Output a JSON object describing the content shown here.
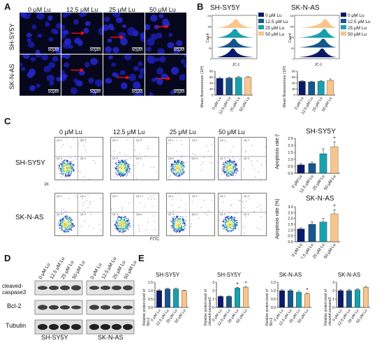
{
  "figure": {
    "panel_labels": [
      "A",
      "B",
      "C",
      "D",
      "E"
    ],
    "treatments": [
      "0 μM Lu",
      "12.5 μM Lu",
      "25 μM Lu",
      "50 μM Lu"
    ],
    "cell_lines": [
      "SH-SY5Y",
      "SK-N-AS"
    ],
    "scale_bar": "50μM",
    "colors": [
      "#0a1a6b",
      "#16568c",
      "#18a0ac",
      "#f7c68c"
    ]
  },
  "panelB": {
    "jc1_label": "JC-1",
    "count_label": "Count",
    "mean_fl_label": "Mean fluorescence (10³)",
    "ylim": [
      0,
      80
    ],
    "yticks": [
      "0",
      "20",
      "40",
      "60",
      "80"
    ],
    "count_ticks": [
      "0",
      "60",
      "120",
      "180",
      "240"
    ]
  },
  "panelC": {
    "x_axis_label": "FITC",
    "y_axis_label": "PI",
    "apop_label": "Apoptosis rate (%)",
    "q_labels": [
      "Q1-1",
      "Q1-2",
      "Q1-3",
      "Q1-4"
    ],
    "shsy_yticks": [
      "0.0",
      "0.5",
      "1.0",
      "1.5",
      "2.0",
      "2.5"
    ],
    "skn_yticks": [
      "0.0",
      "0.5",
      "1.0",
      "1.5",
      "2.0",
      "2.5",
      "3.0"
    ]
  },
  "panelD": {
    "proteins": [
      "cleaved-caspase3",
      "Bcl-2",
      "Tubulin"
    ]
  },
  "panelE": {
    "titles": [
      "SH-SY5Y",
      "SH-SY5Y",
      "SK-N-AS",
      "SK-N-AS"
    ],
    "ylabels": [
      "Relative protein level of Bcl-2",
      "Relative protein level of cleaved-caspase3",
      "Relative protein level of Bcl-2",
      "Relative protein level of cleaved-caspase3"
    ]
  },
  "chart_data": [
    {
      "type": "bar",
      "id": "B-SH-SY5Y",
      "categories": [
        "0 μM Lu",
        "12.5 μM Lu",
        "25 μM Lu",
        "50 μM Lu"
      ],
      "values": [
        56,
        57,
        59,
        60
      ],
      "errors": [
        3,
        3,
        3,
        2
      ],
      "ylabel": "Mean fluorescence (10³)",
      "ylim": [
        0,
        80
      ]
    },
    {
      "type": "bar",
      "id": "B-SK-N-AS",
      "categories": [
        "0 μM Lu",
        "12.5 μM Lu",
        "25 μM Lu",
        "50 μM Lu"
      ],
      "values": [
        46,
        44,
        46,
        49
      ],
      "errors": [
        2,
        2,
        2,
        5
      ],
      "ylabel": "Mean fluorescence (10³)",
      "ylim": [
        0,
        80
      ]
    },
    {
      "type": "bar",
      "id": "C-SH-SY5Y",
      "title": "SH-SY5Y",
      "categories": [
        "0 μM Lu",
        "12.5 μM Lu",
        "25 μM Lu",
        "50 μM Lu"
      ],
      "values": [
        0.6,
        0.7,
        1.4,
        1.9
      ],
      "errors": [
        0.07,
        0.1,
        0.35,
        0.35
      ],
      "sig": [
        false,
        false,
        false,
        true
      ],
      "ylabel": "Apoptosis rate (%)",
      "ylim": [
        0,
        2.5
      ]
    },
    {
      "type": "bar",
      "id": "C-SK-N-AS",
      "title": "SK-N-AS",
      "categories": [
        "0 μM Lu",
        "12.5 μM Lu",
        "25 μM Lu",
        "50 μM Lu"
      ],
      "values": [
        1.1,
        1.5,
        1.7,
        2.4
      ],
      "errors": [
        0.1,
        0.2,
        0.3,
        0.35
      ],
      "sig": [
        false,
        false,
        false,
        true
      ],
      "ylabel": "Apoptosis rate (%)",
      "ylim": [
        0,
        3.0
      ]
    },
    {
      "type": "bar",
      "id": "E-1",
      "title": "SH-SY5Y",
      "categories": [
        "0 μM Lu",
        "12.5 μM Lu",
        "25 μM Lu",
        "50 μM Lu"
      ],
      "values": [
        1.0,
        1.1,
        1.1,
        1.0
      ],
      "errors": [
        0.05,
        0.04,
        0.05,
        0.03
      ],
      "sig": [
        false,
        false,
        false,
        false
      ],
      "ylabel": "Relative protein level of Bcl-2",
      "ylim": [
        0,
        1.5
      ],
      "yticks": [
        "0.0",
        "0.5",
        "1.0",
        "1.5"
      ]
    },
    {
      "type": "bar",
      "id": "E-2",
      "title": "SH-SY5Y",
      "categories": [
        "0 μM Lu",
        "12.5 μM Lu",
        "25 μM Lu",
        "50 μM Lu"
      ],
      "values": [
        1.3,
        1.3,
        2.3,
        2.4
      ],
      "errors": [
        0.05,
        0.05,
        0.08,
        0.1
      ],
      "sig": [
        false,
        false,
        true,
        true
      ],
      "ylabel": "Relative protein level of cleaved-caspase3",
      "ylim": [
        0,
        3
      ],
      "yticks": [
        "0",
        "1",
        "2",
        "3"
      ]
    },
    {
      "type": "bar",
      "id": "E-3",
      "title": "SK-N-AS",
      "categories": [
        "0 μM Lu",
        "12.5 μM Lu",
        "25 μM Lu",
        "50 μM Lu"
      ],
      "values": [
        1.0,
        1.0,
        0.9,
        0.8
      ],
      "errors": [
        0.05,
        0.06,
        0.07,
        0.05
      ],
      "sig": [
        false,
        false,
        false,
        true
      ],
      "ylabel": "Relative protein level of Bcl-2",
      "ylim": [
        0,
        1.5
      ],
      "yticks": [
        "0.0",
        "0.5",
        "1.0",
        "1.5"
      ]
    },
    {
      "type": "bar",
      "id": "E-4",
      "title": "SK-N-AS",
      "categories": [
        "0 μM Lu",
        "12.5 μM Lu",
        "25 μM Lu",
        "50 μM Lu"
      ],
      "values": [
        2.0,
        2.0,
        2.1,
        2.4
      ],
      "errors": [
        0.1,
        0.15,
        0.1,
        0.1
      ],
      "sig": [
        false,
        false,
        false,
        false
      ],
      "ylabel": "Relative protein level of cleaved-caspase3",
      "ylim": [
        0,
        3
      ],
      "yticks": [
        "0",
        "1",
        "2",
        "3"
      ]
    }
  ]
}
